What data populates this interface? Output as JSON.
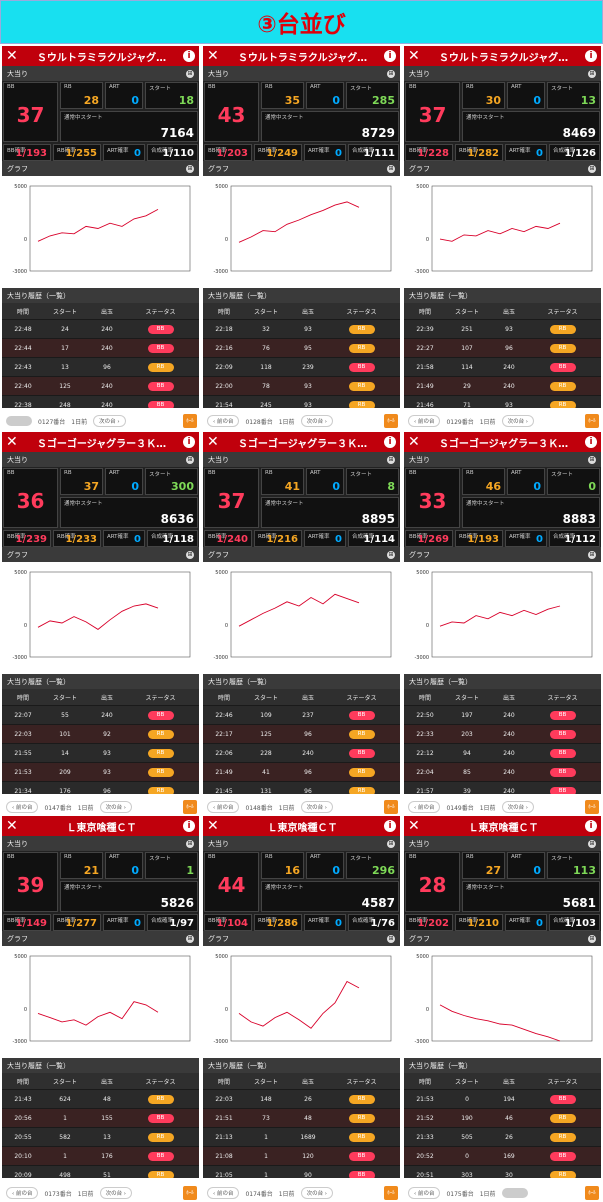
{
  "banner": {
    "title": "③台並び"
  },
  "labels": {
    "big": "大当り",
    "graph": "グラフ",
    "history": "大当り履歴（一覧）",
    "bb": "BB",
    "rb": "RB",
    "art": "ART",
    "start": "スタート",
    "cur": "通常中スタート",
    "bbp": "BB確率",
    "rbp": "RB確率",
    "artp": "ART確率",
    "tot": "合成確率",
    "h_time": "時間",
    "h_start": "スタート",
    "h_out": "出玉",
    "h_status": "ステータス",
    "y_top": "5000",
    "y_zero": "0",
    "y_bot": "-3000"
  },
  "colors": {
    "bb": "#ff3b5c",
    "rb": "#f5a623",
    "art": "#00aaff",
    "start": "#7ed957",
    "red": "#c0000c"
  },
  "machines": [
    {
      "name": "Ｓウルトラミラクルジャグ…",
      "bb": "37",
      "rb": "28",
      "art": "0",
      "start": "18",
      "cur": "7164",
      "bbp": "1/193",
      "rbp": "1/255",
      "artp": "0",
      "tot": "1/110",
      "graph": [
        [
          0,
          -200
        ],
        [
          0.1,
          300
        ],
        [
          0.2,
          600
        ],
        [
          0.3,
          500
        ],
        [
          0.4,
          1200
        ],
        [
          0.5,
          1000
        ],
        [
          0.6,
          1500
        ],
        [
          0.7,
          1200
        ],
        [
          0.8,
          1900
        ],
        [
          0.9,
          2200
        ],
        [
          1,
          2800
        ]
      ],
      "history": [
        [
          "22:48",
          "24",
          "240",
          "BB"
        ],
        [
          "22:44",
          "17",
          "240",
          "BB"
        ],
        [
          "22:43",
          "13",
          "96",
          "RB"
        ],
        [
          "22:40",
          "125",
          "240",
          "BB"
        ],
        [
          "22:38",
          "248",
          "240",
          "BB"
        ]
      ]
    },
    {
      "name": "Ｓウルトラミラクルジャグ…",
      "bb": "43",
      "rb": "35",
      "art": "0",
      "start": "285",
      "cur": "8729",
      "bbp": "1/203",
      "rbp": "1/249",
      "artp": "0",
      "tot": "1/111",
      "graph": [
        [
          0,
          -300
        ],
        [
          0.1,
          200
        ],
        [
          0.2,
          800
        ],
        [
          0.3,
          700
        ],
        [
          0.4,
          1400
        ],
        [
          0.5,
          1800
        ],
        [
          0.6,
          2300
        ],
        [
          0.7,
          2700
        ],
        [
          0.8,
          3200
        ],
        [
          0.9,
          3500
        ],
        [
          1,
          3000
        ]
      ],
      "history": [
        [
          "22:18",
          "32",
          "93",
          "RB"
        ],
        [
          "22:16",
          "76",
          "95",
          "RB"
        ],
        [
          "22:09",
          "118",
          "239",
          "BB"
        ],
        [
          "22:00",
          "78",
          "93",
          "RB"
        ],
        [
          "21:54",
          "245",
          "93",
          "RB"
        ]
      ]
    },
    {
      "name": "Ｓウルトラミラクルジャグ…",
      "bb": "37",
      "rb": "30",
      "art": "0",
      "start": "13",
      "cur": "8469",
      "bbp": "1/228",
      "rbp": "1/282",
      "artp": "0",
      "tot": "1/126",
      "graph": [
        [
          0,
          0
        ],
        [
          0.1,
          -200
        ],
        [
          0.2,
          400
        ],
        [
          0.3,
          300
        ],
        [
          0.4,
          800
        ],
        [
          0.5,
          500
        ],
        [
          0.6,
          1000
        ],
        [
          0.7,
          700
        ],
        [
          0.8,
          1200
        ],
        [
          0.9,
          1000
        ],
        [
          1,
          1500
        ]
      ],
      "history": [
        [
          "22:39",
          "251",
          "93",
          "RB"
        ],
        [
          "22:27",
          "107",
          "96",
          "RB"
        ],
        [
          "21:58",
          "114",
          "240",
          "BB"
        ],
        [
          "21:49",
          "29",
          "240",
          "RB"
        ],
        [
          "21:46",
          "71",
          "93",
          "RB"
        ]
      ]
    },
    {
      "name": "Ｓゴーゴージャグラー３Ｋ…",
      "bb": "36",
      "rb": "37",
      "art": "0",
      "start": "300",
      "cur": "8636",
      "bbp": "1/239",
      "rbp": "1/233",
      "artp": "0",
      "tot": "1/118",
      "graph": [
        [
          0,
          -200
        ],
        [
          0.1,
          400
        ],
        [
          0.2,
          200
        ],
        [
          0.3,
          800
        ],
        [
          0.4,
          300
        ],
        [
          0.5,
          -400
        ],
        [
          0.6,
          500
        ],
        [
          0.7,
          1300
        ],
        [
          0.8,
          1800
        ],
        [
          0.9,
          2000
        ],
        [
          1,
          1600
        ]
      ],
      "history": [
        [
          "22:07",
          "55",
          "240",
          "BB"
        ],
        [
          "22:03",
          "101",
          "92",
          "RB"
        ],
        [
          "21:55",
          "14",
          "93",
          "RB"
        ],
        [
          "21:53",
          "209",
          "93",
          "RB"
        ],
        [
          "21:34",
          "176",
          "96",
          "RB"
        ]
      ]
    },
    {
      "name": "Ｓゴーゴージャグラー３Ｋ…",
      "bb": "37",
      "rb": "41",
      "art": "0",
      "start": "8",
      "cur": "8895",
      "bbp": "1/240",
      "rbp": "1/216",
      "artp": "0",
      "tot": "1/114",
      "graph": [
        [
          0,
          -100
        ],
        [
          0.1,
          500
        ],
        [
          0.2,
          1100
        ],
        [
          0.3,
          1600
        ],
        [
          0.4,
          2200
        ],
        [
          0.5,
          1800
        ],
        [
          0.6,
          2600
        ],
        [
          0.7,
          2000
        ],
        [
          0.8,
          2900
        ],
        [
          0.9,
          2500
        ],
        [
          1,
          2100
        ]
      ],
      "history": [
        [
          "22:46",
          "109",
          "237",
          "BB"
        ],
        [
          "22:17",
          "125",
          "96",
          "RB"
        ],
        [
          "22:06",
          "228",
          "240",
          "BB"
        ],
        [
          "21:49",
          "41",
          "96",
          "RB"
        ],
        [
          "21:45",
          "131",
          "96",
          "RB"
        ]
      ]
    },
    {
      "name": "Ｓゴーゴージャグラー３Ｋ…",
      "bb": "33",
      "rb": "46",
      "art": "0",
      "start": "0",
      "cur": "8883",
      "bbp": "1/269",
      "rbp": "1/193",
      "artp": "0",
      "tot": "1/112",
      "graph": [
        [
          0,
          -100
        ],
        [
          0.1,
          300
        ],
        [
          0.2,
          200
        ],
        [
          0.3,
          900
        ],
        [
          0.4,
          600
        ],
        [
          0.5,
          1200
        ],
        [
          0.6,
          900
        ],
        [
          0.7,
          1400
        ],
        [
          0.8,
          1000
        ],
        [
          0.9,
          1500
        ],
        [
          1,
          1800
        ]
      ],
      "history": [
        [
          "22:50",
          "197",
          "240",
          "BB"
        ],
        [
          "22:33",
          "203",
          "240",
          "BB"
        ],
        [
          "22:12",
          "94",
          "240",
          "BB"
        ],
        [
          "22:04",
          "85",
          "240",
          "BB"
        ],
        [
          "21:57",
          "39",
          "240",
          "BB"
        ]
      ]
    },
    {
      "name": "Ｌ東京喰種ＣＴ",
      "bb": "39",
      "rb": "21",
      "art": "0",
      "start": "1",
      "cur": "5826",
      "bbp": "1/149",
      "rbp": "1/277",
      "artp": "0",
      "tot": "1/97",
      "graph": [
        [
          0,
          -400
        ],
        [
          0.1,
          -800
        ],
        [
          0.2,
          -1200
        ],
        [
          0.3,
          -1000
        ],
        [
          0.4,
          -1500
        ],
        [
          0.5,
          -700
        ],
        [
          0.6,
          -300
        ],
        [
          0.7,
          -900
        ],
        [
          0.8,
          700
        ],
        [
          0.9,
          400
        ],
        [
          1,
          -300
        ]
      ],
      "history": [
        [
          "21:43",
          "624",
          "48",
          "RB"
        ],
        [
          "20:56",
          "1",
          "155",
          "BB"
        ],
        [
          "20:55",
          "582",
          "13",
          "RB"
        ],
        [
          "20:10",
          "1",
          "176",
          "BB"
        ],
        [
          "20:09",
          "498",
          "51",
          "RB"
        ]
      ]
    },
    {
      "name": "Ｌ東京喰種ＣＴ",
      "bb": "44",
      "rb": "16",
      "art": "0",
      "start": "296",
      "cur": "4587",
      "bbp": "1/104",
      "rbp": "1/286",
      "artp": "0",
      "tot": "1/76",
      "graph": [
        [
          0,
          -400
        ],
        [
          0.1,
          -1200
        ],
        [
          0.2,
          -1600
        ],
        [
          0.3,
          -800
        ],
        [
          0.4,
          -300
        ],
        [
          0.5,
          -1000
        ],
        [
          0.6,
          -1800
        ],
        [
          0.7,
          -400
        ],
        [
          0.8,
          600
        ],
        [
          0.9,
          2600
        ],
        [
          1,
          2000
        ]
      ],
      "history": [
        [
          "22:03",
          "148",
          "26",
          "RB"
        ],
        [
          "21:51",
          "73",
          "48",
          "RB"
        ],
        [
          "21:13",
          "1",
          "1689",
          "RB"
        ],
        [
          "21:08",
          "1",
          "120",
          "BB"
        ],
        [
          "21:05",
          "1",
          "90",
          "BB"
        ]
      ]
    },
    {
      "name": "Ｌ東京喰種ＣＴ",
      "bb": "28",
      "rb": "27",
      "art": "0",
      "start": "113",
      "cur": "5681",
      "bbp": "1/202",
      "rbp": "1/210",
      "artp": "0",
      "tot": "1/103",
      "graph": [
        [
          0,
          400
        ],
        [
          0.1,
          -200
        ],
        [
          0.2,
          -600
        ],
        [
          0.3,
          -900
        ],
        [
          0.4,
          -1100
        ],
        [
          0.5,
          -1400
        ],
        [
          0.6,
          -1500
        ],
        [
          0.7,
          -1900
        ],
        [
          0.8,
          -2300
        ],
        [
          0.9,
          -2600
        ],
        [
          1,
          -3000
        ]
      ],
      "history": [
        [
          "21:53",
          "0",
          "194",
          "BB"
        ],
        [
          "21:52",
          "190",
          "46",
          "RB"
        ],
        [
          "21:33",
          "505",
          "26",
          "RB"
        ],
        [
          "20:52",
          "0",
          "169",
          "BB"
        ],
        [
          "20:51",
          "303",
          "30",
          "RB"
        ]
      ]
    }
  ],
  "footers": [
    [
      {
        "num": "0127番台",
        "ago": "1日前",
        "next": "次の台",
        "prev": "",
        "icon": "ﾎｰﾙ"
      },
      {
        "num": "0128番台",
        "ago": "1日前",
        "next": "次の台",
        "prev": "前の台",
        "icon": "ﾎｰﾙ"
      },
      {
        "num": "0129番台",
        "ago": "1日前",
        "next": "次の台",
        "prev": "前の台",
        "icon": "ﾎｰﾙ"
      }
    ],
    [
      {
        "num": "0147番台",
        "ago": "1日前",
        "next": "次の台",
        "prev": "前の台",
        "icon": "ﾎｰﾙ"
      },
      {
        "num": "0148番台",
        "ago": "1日前",
        "next": "次の台",
        "prev": "前の台",
        "icon": "ﾎｰﾙ"
      },
      {
        "num": "0149番台",
        "ago": "1日前",
        "next": "次の台",
        "prev": "前の台",
        "icon": "ﾎｰﾙ"
      }
    ],
    [
      {
        "num": "0173番台",
        "ago": "1日前",
        "next": "次の台",
        "prev": "前の台",
        "icon": "ﾎｰﾙ"
      },
      {
        "num": "0174番台",
        "ago": "1日前",
        "next": "次の台",
        "prev": "前の台",
        "icon": "ﾎｰﾙ"
      },
      {
        "num": "0175番台",
        "ago": "1日前",
        "next": "",
        "prev": "前の台",
        "icon": "ﾎｰﾙ"
      }
    ]
  ]
}
